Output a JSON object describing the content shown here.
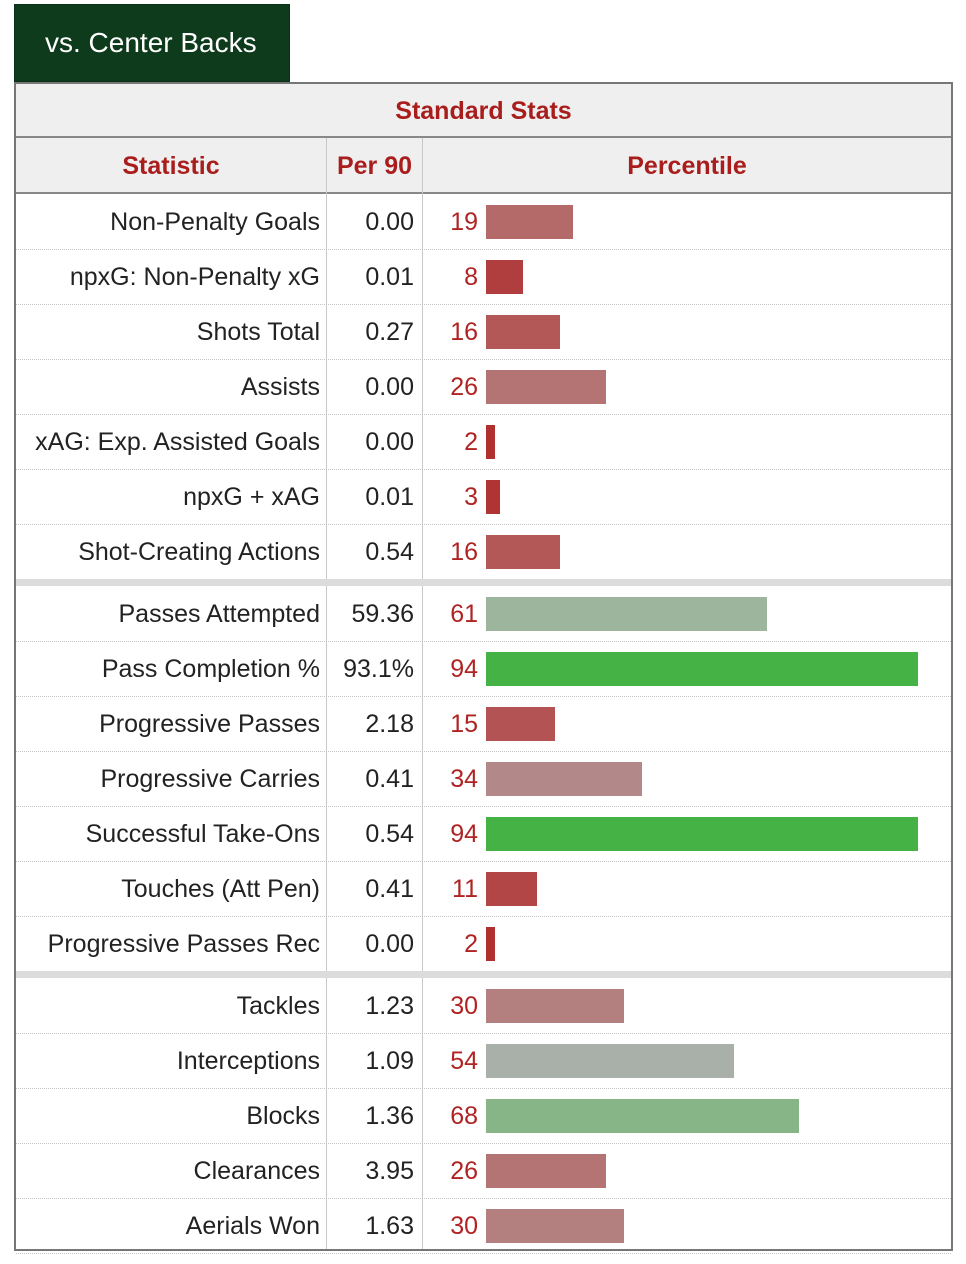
{
  "tab_label": "vs. Center Backs",
  "table": {
    "title": "Standard Stats",
    "headers": {
      "statistic": "Statistic",
      "per90": "Per 90",
      "percentile": "Percentile"
    }
  },
  "chart_data": {
    "type": "bar",
    "orientation": "horizontal",
    "title": "Standard Stats",
    "xlabel": "Percentile",
    "xlim": [
      0,
      100
    ],
    "groups": [
      [
        {
          "statistic": "Non-Penalty Goals",
          "per90": "0.00",
          "percentile": 19,
          "color": "#b56a6a"
        },
        {
          "statistic": "npxG: Non-Penalty xG",
          "per90": "0.01",
          "percentile": 8,
          "color": "#b13e3e"
        },
        {
          "statistic": "Shots Total",
          "per90": "0.27",
          "percentile": 16,
          "color": "#b35757"
        },
        {
          "statistic": "Assists",
          "per90": "0.00",
          "percentile": 26,
          "color": "#b47474"
        },
        {
          "statistic": "xAG: Exp. Assisted Goals",
          "per90": "0.00",
          "percentile": 2,
          "color": "#b02f2f"
        },
        {
          "statistic": "npxG + xAG",
          "per90": "0.01",
          "percentile": 3,
          "color": "#b03434"
        },
        {
          "statistic": "Shot-Creating Actions",
          "per90": "0.54",
          "percentile": 16,
          "color": "#b35757"
        }
      ],
      [
        {
          "statistic": "Passes Attempted",
          "per90": "59.36",
          "percentile": 61,
          "color": "#9db59c"
        },
        {
          "statistic": "Pass Completion %",
          "per90": "93.1%",
          "percentile": 94,
          "color": "#45b245"
        },
        {
          "statistic": "Progressive Passes",
          "per90": "2.18",
          "percentile": 15,
          "color": "#b35353"
        },
        {
          "statistic": "Progressive Carries",
          "per90": "0.41",
          "percentile": 34,
          "color": "#b38888"
        },
        {
          "statistic": "Successful Take-Ons",
          "per90": "0.54",
          "percentile": 94,
          "color": "#45b245"
        },
        {
          "statistic": "Touches (Att Pen)",
          "per90": "0.41",
          "percentile": 11,
          "color": "#b24545"
        },
        {
          "statistic": "Progressive Passes Rec",
          "per90": "0.00",
          "percentile": 2,
          "color": "#b02f2f"
        }
      ],
      [
        {
          "statistic": "Tackles",
          "per90": "1.23",
          "percentile": 30,
          "color": "#b37f7f"
        },
        {
          "statistic": "Interceptions",
          "per90": "1.09",
          "percentile": 54,
          "color": "#a9b0a9"
        },
        {
          "statistic": "Blocks",
          "per90": "1.36",
          "percentile": 68,
          "color": "#87b587"
        },
        {
          "statistic": "Clearances",
          "per90": "3.95",
          "percentile": 26,
          "color": "#b47474"
        },
        {
          "statistic": "Aerials Won",
          "per90": "1.63",
          "percentile": 30,
          "color": "#b37f7f"
        }
      ]
    ]
  }
}
